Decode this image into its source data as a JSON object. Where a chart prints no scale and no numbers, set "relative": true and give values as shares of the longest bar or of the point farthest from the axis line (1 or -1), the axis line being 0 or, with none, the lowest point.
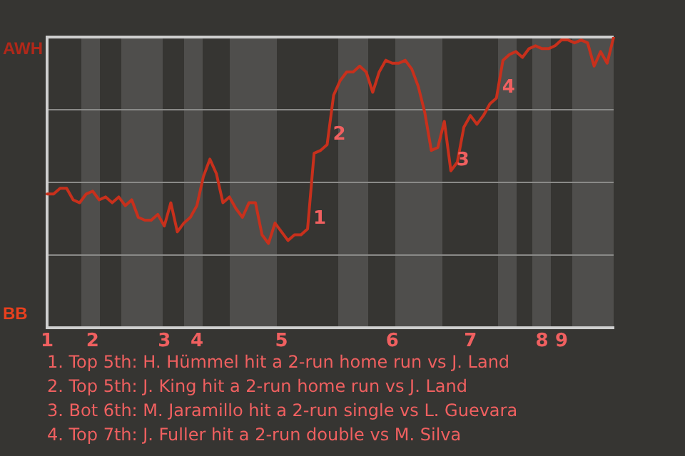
{
  "chart_data": {
    "type": "line",
    "categories": [
      "1",
      null,
      null,
      null,
      null,
      null,
      null,
      "2",
      null,
      null,
      null,
      null,
      null,
      null,
      null,
      null,
      null,
      null,
      "3",
      null,
      null,
      null,
      null,
      "4",
      null,
      null,
      null,
      null,
      null,
      null,
      null,
      null,
      null,
      null,
      null,
      null,
      "5",
      null,
      null,
      null,
      null,
      null,
      null,
      null,
      null,
      null,
      null,
      null,
      null,
      null,
      null,
      null,
      null,
      "6",
      null,
      null,
      null,
      null,
      null,
      null,
      null,
      null,
      null,
      null,
      null,
      "7",
      null,
      null,
      null,
      null,
      null,
      null,
      null,
      null,
      null,
      null,
      "8",
      null,
      null,
      "9",
      null,
      null,
      null,
      null,
      null,
      null,
      null,
      null
    ],
    "series": [
      {
        "color": "#c8301c",
        "values": [
          0.46,
          0.46,
          0.48,
          0.48,
          0.44,
          0.43,
          0.46,
          0.47,
          0.44,
          0.45,
          0.43,
          0.45,
          0.42,
          0.44,
          0.38,
          0.37,
          0.37,
          0.39,
          0.35,
          0.43,
          0.33,
          0.36,
          0.38,
          0.42,
          0.52,
          0.58,
          0.53,
          0.43,
          0.45,
          0.41,
          0.38,
          0.43,
          0.43,
          0.32,
          0.29,
          0.36,
          0.33,
          0.3,
          0.32,
          0.32,
          0.34,
          0.6,
          0.61,
          0.63,
          0.8,
          0.85,
          0.88,
          0.88,
          0.9,
          0.88,
          0.81,
          0.88,
          0.92,
          0.91,
          0.91,
          0.92,
          0.89,
          0.83,
          0.74,
          0.61,
          0.62,
          0.71,
          0.54,
          0.57,
          0.69,
          0.73,
          0.7,
          0.73,
          0.77,
          0.79,
          0.92,
          0.94,
          0.95,
          0.93,
          0.96,
          0.97,
          0.96,
          0.96,
          0.97,
          0.99,
          0.99,
          0.98,
          0.99,
          0.98,
          0.9,
          0.95,
          0.91,
          1.0
        ]
      }
    ],
    "relative": true,
    "grid": "y",
    "legend": false,
    "marker": "none",
    "line_style": "solid",
    "annotations": [
      "AWH",
      "BB",
      "1",
      "2",
      "3",
      "4",
      "1. Top 5th: H. Hümmel hit a 2-run home run vs J. Land",
      "2. Top 5th: J. King hit a 2-run home run vs J. Land",
      "3. Bot 6th: M. Jaramillo hit a 2-run single vs L. Guevara",
      "4. Top 7th: J. Fuller hit a 2-run double vs M. Silva"
    ]
  }
}
